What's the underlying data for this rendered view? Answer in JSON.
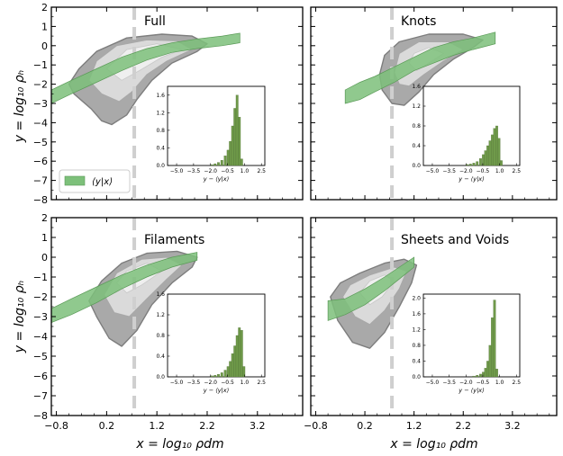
{
  "figure": {
    "ylabel": "y = log₁₀ ρₕ",
    "xlabel": "x = log₁₀ ρdm",
    "legend_label": "⟨y|x⟩",
    "colors": {
      "band": "#7dc07a",
      "band_edge": "#5a9a57",
      "outer_contour": "#9a9a9a",
      "inner_contour": "#dcdcdc",
      "innermost_contour": "#efefef",
      "histogram": "#6f9a4a",
      "threshold_line": "#cfcfcf"
    }
  },
  "chart_data": [
    {
      "type": "area",
      "title": "Full",
      "xlim": [
        -0.9,
        4.1
      ],
      "ylim": [
        -8,
        2
      ],
      "xticks": [
        "−0.8",
        "0.2",
        "1.2",
        "2.2",
        "3.2"
      ],
      "yticks": [
        "2",
        "1",
        "0",
        "−1",
        "−2",
        "−3",
        "−4",
        "−5",
        "−6",
        "−7",
        "−8"
      ],
      "threshold_x": 0.75,
      "band_lower": [
        [
          -0.9,
          -3.0
        ],
        [
          -0.5,
          -2.5
        ],
        [
          0,
          -1.9
        ],
        [
          0.5,
          -1.3
        ],
        [
          1.0,
          -0.75
        ],
        [
          1.5,
          -0.35
        ],
        [
          2.0,
          -0.15
        ],
        [
          2.5,
          0.0
        ],
        [
          2.85,
          0.15
        ]
      ],
      "band_upper": [
        [
          -0.9,
          -2.3
        ],
        [
          -0.5,
          -1.8
        ],
        [
          0,
          -1.2
        ],
        [
          0.5,
          -0.6
        ],
        [
          1.0,
          -0.15
        ],
        [
          1.5,
          0.15
        ],
        [
          2.0,
          0.35
        ],
        [
          2.5,
          0.5
        ],
        [
          2.85,
          0.65
        ]
      ],
      "contour_outer": [
        [
          -0.45,
          -2.5
        ],
        [
          -0.1,
          -3.3
        ],
        [
          0.1,
          -3.9
        ],
        [
          0.3,
          -4.1
        ],
        [
          0.6,
          -3.6
        ],
        [
          0.8,
          -2.8
        ],
        [
          1.1,
          -1.8
        ],
        [
          1.5,
          -0.9
        ],
        [
          2.0,
          -0.3
        ],
        [
          2.2,
          0.1
        ],
        [
          1.9,
          0.5
        ],
        [
          1.3,
          0.6
        ],
        [
          0.6,
          0.4
        ],
        [
          0.0,
          -0.3
        ],
        [
          -0.35,
          -1.2
        ],
        [
          -0.55,
          -2.0
        ]
      ],
      "contour_inner": [
        [
          -0.15,
          -1.8
        ],
        [
          0.1,
          -2.5
        ],
        [
          0.45,
          -2.9
        ],
        [
          0.7,
          -2.4
        ],
        [
          1.0,
          -1.5
        ],
        [
          1.4,
          -0.8
        ],
        [
          1.9,
          -0.2
        ],
        [
          1.6,
          0.25
        ],
        [
          1.0,
          0.3
        ],
        [
          0.4,
          0.0
        ],
        [
          0.0,
          -0.8
        ]
      ],
      "contour_core": [
        [
          0.2,
          -1.2
        ],
        [
          0.5,
          -1.8
        ],
        [
          0.85,
          -1.3
        ],
        [
          1.3,
          -0.6
        ],
        [
          1.7,
          -0.2
        ],
        [
          1.2,
          0.1
        ],
        [
          0.6,
          -0.2
        ]
      ],
      "inset": {
        "xlabel": "y − ⟨y|x⟩",
        "xticks": [
          "−5.0",
          "−3.5",
          "−2.0",
          "−0.5",
          "1.0",
          "2.5"
        ],
        "xlim": [
          -5.8,
          2.8
        ],
        "yticks": [
          "0.0",
          "0.4",
          "0.8",
          "1.2",
          "1.6"
        ],
        "ymax": 1.8,
        "bins_x": [
          -1.9,
          -1.6,
          -1.3,
          -1.0,
          -0.7,
          -0.45,
          -0.25,
          -0.05,
          0.15,
          0.35,
          0.55,
          0.75
        ],
        "bins_h": [
          0.02,
          0.04,
          0.07,
          0.12,
          0.22,
          0.35,
          0.55,
          0.9,
          1.3,
          1.6,
          1.1,
          0.15
        ],
        "bin_width": 0.2
      }
    },
    {
      "type": "area",
      "title": "Knots",
      "xlim": [
        -0.9,
        4.1
      ],
      "ylim": [
        -8,
        2
      ],
      "xticks": [
        "−0.8",
        "0.2",
        "1.2",
        "2.2",
        "3.2"
      ],
      "yticks": [
        "2",
        "1",
        "0",
        "−1",
        "−2",
        "−3",
        "−4",
        "−5",
        "−6",
        "−7",
        "−8"
      ],
      "threshold_x": 0.75,
      "band_lower": [
        [
          -0.2,
          -3.0
        ],
        [
          0.1,
          -2.8
        ],
        [
          0.4,
          -2.4
        ],
        [
          0.8,
          -1.9
        ],
        [
          1.2,
          -1.3
        ],
        [
          1.6,
          -0.9
        ],
        [
          2.0,
          -0.5
        ],
        [
          2.4,
          -0.2
        ],
        [
          2.85,
          0.1
        ]
      ],
      "band_upper": [
        [
          -0.2,
          -2.3
        ],
        [
          0.1,
          -1.9
        ],
        [
          0.4,
          -1.6
        ],
        [
          0.8,
          -1.1
        ],
        [
          1.2,
          -0.6
        ],
        [
          1.6,
          -0.1
        ],
        [
          2.0,
          0.2
        ],
        [
          2.4,
          0.4
        ],
        [
          2.85,
          0.7
        ]
      ],
      "contour_outer": [
        [
          0.5,
          -1.5
        ],
        [
          0.55,
          -2.3
        ],
        [
          0.75,
          -3.0
        ],
        [
          1.0,
          -3.1
        ],
        [
          1.3,
          -2.4
        ],
        [
          1.6,
          -1.5
        ],
        [
          2.0,
          -0.7
        ],
        [
          2.4,
          -0.1
        ],
        [
          2.6,
          0.3
        ],
        [
          2.2,
          0.6
        ],
        [
          1.5,
          0.6
        ],
        [
          0.9,
          0.2
        ],
        [
          0.6,
          -0.5
        ]
      ],
      "contour_inner": [
        [
          0.8,
          -1.4
        ],
        [
          0.9,
          -2.0
        ],
        [
          1.1,
          -2.1
        ],
        [
          1.4,
          -1.5
        ],
        [
          1.8,
          -0.8
        ],
        [
          2.2,
          -0.2
        ],
        [
          1.9,
          0.2
        ],
        [
          1.3,
          0.2
        ],
        [
          0.9,
          -0.4
        ]
      ],
      "contour_core": [
        [
          1.1,
          -0.9
        ],
        [
          1.25,
          -1.3
        ],
        [
          1.5,
          -0.9
        ],
        [
          1.8,
          -0.4
        ],
        [
          1.5,
          -0.1
        ],
        [
          1.2,
          -0.4
        ]
      ],
      "inset": {
        "xlabel": "y − ⟨y|x⟩",
        "xticks": [
          "−5.0",
          "−3.5",
          "−2.0",
          "−0.5",
          "1.0",
          "2.5"
        ],
        "xlim": [
          -5.8,
          2.8
        ],
        "yticks": [
          "0.0",
          "0.4",
          "0.8",
          "1.2",
          "1.6"
        ],
        "ymax": 1.6,
        "bins_x": [
          -1.9,
          -1.6,
          -1.3,
          -1.0,
          -0.7,
          -0.45,
          -0.25,
          -0.05,
          0.15,
          0.35,
          0.55,
          0.75,
          0.95,
          1.15
        ],
        "bins_h": [
          0.02,
          0.03,
          0.05,
          0.08,
          0.14,
          0.22,
          0.3,
          0.4,
          0.5,
          0.62,
          0.75,
          0.8,
          0.55,
          0.1
        ],
        "bin_width": 0.2
      }
    },
    {
      "type": "area",
      "title": "Filaments",
      "xlim": [
        -0.9,
        4.1
      ],
      "ylim": [
        -8,
        2
      ],
      "xticks": [
        "−0.8",
        "0.2",
        "1.2",
        "2.2",
        "3.2"
      ],
      "yticks": [
        "2",
        "1",
        "0",
        "−1",
        "−2",
        "−3",
        "−4",
        "−5",
        "−6",
        "−7",
        "−8"
      ],
      "threshold_x": 0.75,
      "band_lower": [
        [
          -0.9,
          -3.3
        ],
        [
          -0.5,
          -2.9
        ],
        [
          0,
          -2.3
        ],
        [
          0.5,
          -1.6
        ],
        [
          1.0,
          -1.0
        ],
        [
          1.5,
          -0.5
        ],
        [
          2.0,
          -0.15
        ]
      ],
      "band_upper": [
        [
          -0.9,
          -2.6
        ],
        [
          -0.5,
          -2.1
        ],
        [
          0,
          -1.5
        ],
        [
          0.5,
          -0.9
        ],
        [
          1.0,
          -0.4
        ],
        [
          1.5,
          0.0
        ],
        [
          2.0,
          0.25
        ]
      ],
      "contour_outer": [
        [
          -0.15,
          -2.2
        ],
        [
          0.0,
          -3.0
        ],
        [
          0.25,
          -4.1
        ],
        [
          0.5,
          -4.5
        ],
        [
          0.8,
          -3.7
        ],
        [
          1.1,
          -2.4
        ],
        [
          1.5,
          -1.3
        ],
        [
          1.9,
          -0.5
        ],
        [
          2.0,
          0.0
        ],
        [
          1.6,
          0.3
        ],
        [
          1.0,
          0.2
        ],
        [
          0.5,
          -0.3
        ],
        [
          0.1,
          -1.2
        ]
      ],
      "contour_inner": [
        [
          0.15,
          -1.9
        ],
        [
          0.35,
          -2.8
        ],
        [
          0.65,
          -3.0
        ],
        [
          1.0,
          -2.1
        ],
        [
          1.4,
          -1.1
        ],
        [
          1.7,
          -0.4
        ],
        [
          1.4,
          0.0
        ],
        [
          0.9,
          -0.1
        ],
        [
          0.4,
          -0.8
        ]
      ],
      "contour_core": [
        [
          0.4,
          -1.3
        ],
        [
          0.6,
          -1.8
        ],
        [
          0.9,
          -1.4
        ],
        [
          1.3,
          -0.7
        ],
        [
          1.0,
          -0.3
        ],
        [
          0.6,
          -0.7
        ]
      ],
      "inset": {
        "xlabel": "y − ⟨y|x⟩",
        "xticks": [
          "−5.0",
          "−3.5",
          "−2.0",
          "−0.5",
          "1.0",
          "2.5"
        ],
        "xlim": [
          -5.8,
          2.8
        ],
        "yticks": [
          "0.0",
          "0.4",
          "0.8",
          "1.2",
          "1.6"
        ],
        "ymax": 1.6,
        "bins_x": [
          -1.9,
          -1.6,
          -1.3,
          -1.0,
          -0.7,
          -0.45,
          -0.25,
          -0.05,
          0.15,
          0.35,
          0.55,
          0.75,
          0.95
        ],
        "bins_h": [
          0.02,
          0.03,
          0.05,
          0.08,
          0.13,
          0.2,
          0.3,
          0.45,
          0.6,
          0.8,
          0.95,
          0.9,
          0.2
        ],
        "bin_width": 0.2
      }
    },
    {
      "type": "area",
      "title": "Sheets and Voids",
      "xlim": [
        -0.9,
        4.1
      ],
      "ylim": [
        -8,
        2
      ],
      "xticks": [
        "−0.8",
        "0.2",
        "1.2",
        "2.2",
        "3.2"
      ],
      "yticks": [
        "2",
        "1",
        "0",
        "−1",
        "−2",
        "−3",
        "−4",
        "−5",
        "−6",
        "−7",
        "−8"
      ],
      "threshold_x": 0.75,
      "band_lower": [
        [
          -0.55,
          -3.2
        ],
        [
          -0.2,
          -2.9
        ],
        [
          0.2,
          -2.4
        ],
        [
          0.6,
          -1.7
        ],
        [
          0.9,
          -1.1
        ],
        [
          1.2,
          -0.5
        ]
      ],
      "band_upper": [
        [
          -0.55,
          -2.2
        ],
        [
          -0.2,
          -2.1
        ],
        [
          0.2,
          -1.6
        ],
        [
          0.6,
          -1.0
        ],
        [
          0.9,
          -0.5
        ],
        [
          1.2,
          0.0
        ]
      ],
      "contour_outer": [
        [
          -0.5,
          -2.0
        ],
        [
          -0.35,
          -3.2
        ],
        [
          -0.05,
          -4.3
        ],
        [
          0.3,
          -4.6
        ],
        [
          0.6,
          -3.8
        ],
        [
          0.9,
          -2.5
        ],
        [
          1.15,
          -1.3
        ],
        [
          1.25,
          -0.4
        ],
        [
          1.0,
          -0.1
        ],
        [
          0.6,
          -0.3
        ],
        [
          0.1,
          -0.8
        ],
        [
          -0.3,
          -1.3
        ]
      ],
      "contour_inner": [
        [
          -0.25,
          -2.0
        ],
        [
          0.0,
          -3.0
        ],
        [
          0.3,
          -3.4
        ],
        [
          0.6,
          -2.7
        ],
        [
          0.9,
          -1.6
        ],
        [
          1.05,
          -0.7
        ],
        [
          0.8,
          -0.5
        ],
        [
          0.3,
          -0.9
        ],
        [
          -0.1,
          -1.4
        ]
      ],
      "contour_core": [
        [
          0.1,
          -1.8
        ],
        [
          0.3,
          -2.4
        ],
        [
          0.55,
          -2.0
        ],
        [
          0.8,
          -1.2
        ],
        [
          0.6,
          -0.9
        ],
        [
          0.3,
          -1.2
        ]
      ],
      "inset": {
        "xlabel": "y − ⟨y|x⟩",
        "xticks": [
          "−5.0",
          "−3.5",
          "−2.0",
          "−0.5",
          "1.0",
          "2.5"
        ],
        "xlim": [
          -5.8,
          2.8
        ],
        "yticks": [
          "0.0",
          "0.4",
          "0.8",
          "1.2",
          "1.6",
          "2.0"
        ],
        "ymax": 2.1,
        "bins_x": [
          -1.3,
          -1.0,
          -0.7,
          -0.45,
          -0.25,
          -0.05,
          0.15,
          0.35,
          0.55,
          0.75
        ],
        "bins_h": [
          0.02,
          0.04,
          0.07,
          0.12,
          0.22,
          0.4,
          0.8,
          1.5,
          1.95,
          0.2
        ],
        "bin_width": 0.2
      }
    }
  ]
}
